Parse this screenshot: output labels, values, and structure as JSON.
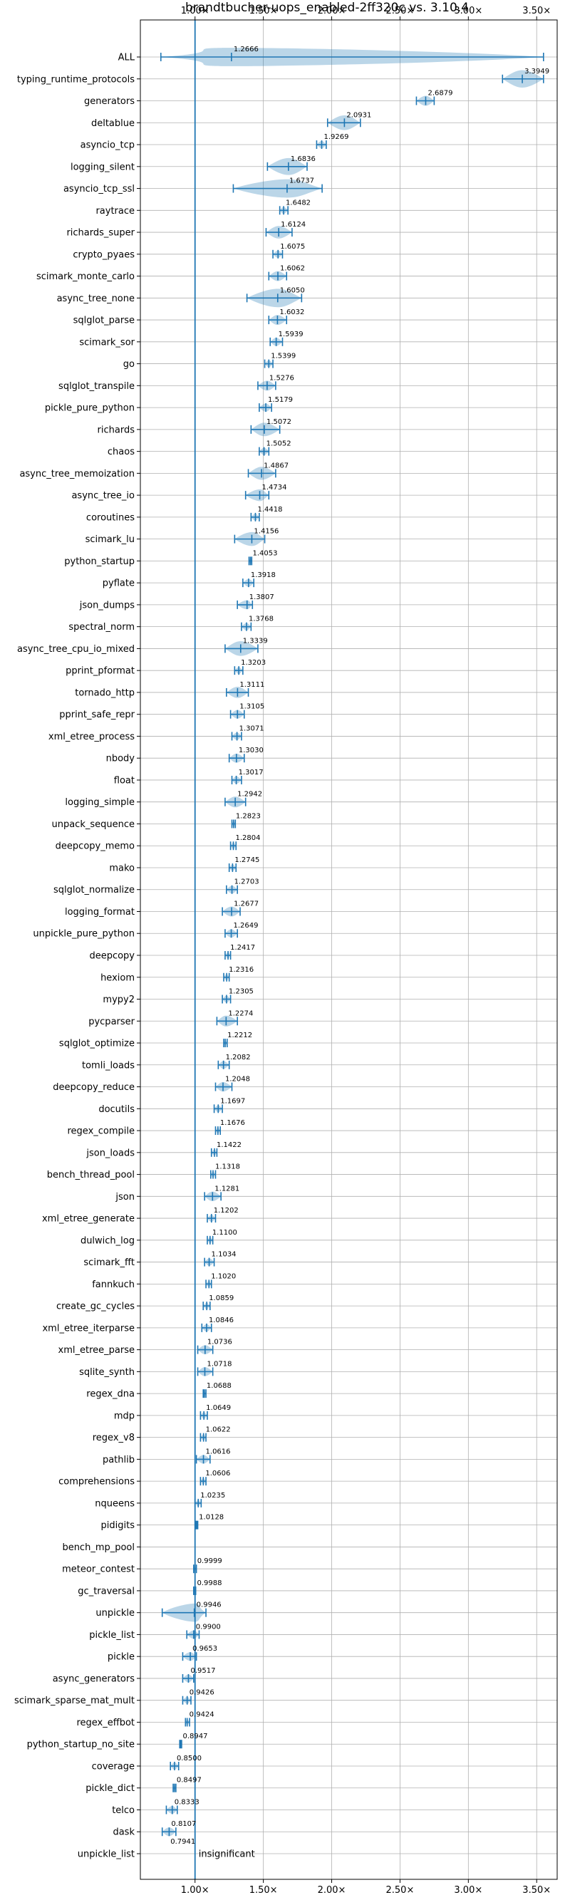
{
  "chart_data": {
    "type": "violin",
    "title": "brandtbucher-uops_enabled-2ff320c vs. 3.10.4",
    "xlabel": "",
    "ylabel": "",
    "xlim": [
      0.6,
      3.65
    ],
    "x_ticks": [
      "1.00×",
      "1.50×",
      "2.00×",
      "2.50×",
      "3.00×",
      "3.50×"
    ],
    "x_tick_values": [
      1.0,
      1.5,
      2.0,
      2.5,
      3.0,
      3.5
    ],
    "reference_line": 1.0,
    "grid": true,
    "insignificant_note": "insignificant",
    "categories": [
      {
        "name": "ALL",
        "label": "1.2666",
        "value": 1.2666,
        "min": 0.75,
        "max": 3.55
      },
      {
        "name": "typing_runtime_protocols",
        "label": "3.3949",
        "value": 3.3949,
        "min": 3.25,
        "max": 3.55
      },
      {
        "name": "generators",
        "label": "2.6879",
        "value": 2.6879,
        "min": 2.62,
        "max": 2.75
      },
      {
        "name": "deltablue",
        "label": "2.0931",
        "value": 2.0931,
        "min": 1.97,
        "max": 2.21
      },
      {
        "name": "asyncio_tcp",
        "label": "1.9269",
        "value": 1.9269,
        "min": 1.89,
        "max": 1.96
      },
      {
        "name": "logging_silent",
        "label": "1.6836",
        "value": 1.6836,
        "min": 1.53,
        "max": 1.82
      },
      {
        "name": "asyncio_tcp_ssl",
        "label": "1.6737",
        "value": 1.6737,
        "min": 1.28,
        "max": 1.93
      },
      {
        "name": "raytrace",
        "label": "1.6482",
        "value": 1.6482,
        "min": 1.62,
        "max": 1.68
      },
      {
        "name": "richards_super",
        "label": "1.6124",
        "value": 1.6124,
        "min": 1.52,
        "max": 1.71
      },
      {
        "name": "crypto_pyaes",
        "label": "1.6075",
        "value": 1.6075,
        "min": 1.57,
        "max": 1.64
      },
      {
        "name": "scimark_monte_carlo",
        "label": "1.6062",
        "value": 1.6062,
        "min": 1.54,
        "max": 1.67
      },
      {
        "name": "async_tree_none",
        "label": "1.6050",
        "value": 1.605,
        "min": 1.38,
        "max": 1.78
      },
      {
        "name": "sqlglot_parse",
        "label": "1.6032",
        "value": 1.6032,
        "min": 1.54,
        "max": 1.67
      },
      {
        "name": "scimark_sor",
        "label": "1.5939",
        "value": 1.5939,
        "min": 1.55,
        "max": 1.64
      },
      {
        "name": "go",
        "label": "1.5399",
        "value": 1.5399,
        "min": 1.51,
        "max": 1.57
      },
      {
        "name": "sqlglot_transpile",
        "label": "1.5276",
        "value": 1.5276,
        "min": 1.46,
        "max": 1.59
      },
      {
        "name": "pickle_pure_python",
        "label": "1.5179",
        "value": 1.5179,
        "min": 1.47,
        "max": 1.56
      },
      {
        "name": "richards",
        "label": "1.5072",
        "value": 1.5072,
        "min": 1.41,
        "max": 1.62
      },
      {
        "name": "chaos",
        "label": "1.5052",
        "value": 1.5052,
        "min": 1.47,
        "max": 1.54
      },
      {
        "name": "async_tree_memoization",
        "label": "1.4867",
        "value": 1.4867,
        "min": 1.39,
        "max": 1.59
      },
      {
        "name": "async_tree_io",
        "label": "1.4734",
        "value": 1.4734,
        "min": 1.37,
        "max": 1.54
      },
      {
        "name": "coroutines",
        "label": "1.4418",
        "value": 1.4418,
        "min": 1.41,
        "max": 1.47
      },
      {
        "name": "scimark_lu",
        "label": "1.4156",
        "value": 1.4156,
        "min": 1.29,
        "max": 1.51
      },
      {
        "name": "python_startup",
        "label": "1.4053",
        "value": 1.4053,
        "min": 1.395,
        "max": 1.415
      },
      {
        "name": "pyflate",
        "label": "1.3918",
        "value": 1.3918,
        "min": 1.35,
        "max": 1.43
      },
      {
        "name": "json_dumps",
        "label": "1.3807",
        "value": 1.3807,
        "min": 1.31,
        "max": 1.42
      },
      {
        "name": "spectral_norm",
        "label": "1.3768",
        "value": 1.3768,
        "min": 1.34,
        "max": 1.41
      },
      {
        "name": "async_tree_cpu_io_mixed",
        "label": "1.3339",
        "value": 1.3339,
        "min": 1.22,
        "max": 1.46
      },
      {
        "name": "pprint_pformat",
        "label": "1.3203",
        "value": 1.3203,
        "min": 1.29,
        "max": 1.35
      },
      {
        "name": "tornado_http",
        "label": "1.3111",
        "value": 1.3111,
        "min": 1.23,
        "max": 1.39
      },
      {
        "name": "pprint_safe_repr",
        "label": "1.3105",
        "value": 1.3105,
        "min": 1.26,
        "max": 1.36
      },
      {
        "name": "xml_etree_process",
        "label": "1.3071",
        "value": 1.3071,
        "min": 1.27,
        "max": 1.34
      },
      {
        "name": "nbody",
        "label": "1.3030",
        "value": 1.303,
        "min": 1.25,
        "max": 1.36
      },
      {
        "name": "float",
        "label": "1.3017",
        "value": 1.3017,
        "min": 1.27,
        "max": 1.34
      },
      {
        "name": "logging_simple",
        "label": "1.2942",
        "value": 1.2942,
        "min": 1.22,
        "max": 1.37
      },
      {
        "name": "unpack_sequence",
        "label": "1.2823",
        "value": 1.2823,
        "min": 1.27,
        "max": 1.295
      },
      {
        "name": "deepcopy_memo",
        "label": "1.2804",
        "value": 1.2804,
        "min": 1.26,
        "max": 1.3
      },
      {
        "name": "mako",
        "label": "1.2745",
        "value": 1.2745,
        "min": 1.25,
        "max": 1.3
      },
      {
        "name": "sqlglot_normalize",
        "label": "1.2703",
        "value": 1.2703,
        "min": 1.23,
        "max": 1.31
      },
      {
        "name": "logging_format",
        "label": "1.2677",
        "value": 1.2677,
        "min": 1.2,
        "max": 1.33
      },
      {
        "name": "unpickle_pure_python",
        "label": "1.2649",
        "value": 1.2649,
        "min": 1.22,
        "max": 1.31
      },
      {
        "name": "deepcopy",
        "label": "1.2417",
        "value": 1.2417,
        "min": 1.22,
        "max": 1.26
      },
      {
        "name": "hexiom",
        "label": "1.2316",
        "value": 1.2316,
        "min": 1.21,
        "max": 1.25
      },
      {
        "name": "mypy2",
        "label": "1.2305",
        "value": 1.2305,
        "min": 1.2,
        "max": 1.26
      },
      {
        "name": "pycparser",
        "label": "1.2274",
        "value": 1.2274,
        "min": 1.16,
        "max": 1.31
      },
      {
        "name": "sqlglot_optimize",
        "label": "1.2212",
        "value": 1.2212,
        "min": 1.21,
        "max": 1.235
      },
      {
        "name": "tomli_loads",
        "label": "1.2082",
        "value": 1.2082,
        "min": 1.17,
        "max": 1.25
      },
      {
        "name": "deepcopy_reduce",
        "label": "1.2048",
        "value": 1.2048,
        "min": 1.15,
        "max": 1.27
      },
      {
        "name": "docutils",
        "label": "1.1697",
        "value": 1.1697,
        "min": 1.14,
        "max": 1.2
      },
      {
        "name": "regex_compile",
        "label": "1.1676",
        "value": 1.1676,
        "min": 1.15,
        "max": 1.185
      },
      {
        "name": "json_loads",
        "label": "1.1422",
        "value": 1.1422,
        "min": 1.12,
        "max": 1.16
      },
      {
        "name": "bench_thread_pool",
        "label": "1.1318",
        "value": 1.1318,
        "min": 1.115,
        "max": 1.15
      },
      {
        "name": "json",
        "label": "1.1281",
        "value": 1.1281,
        "min": 1.07,
        "max": 1.19
      },
      {
        "name": "xml_etree_generate",
        "label": "1.1202",
        "value": 1.1202,
        "min": 1.09,
        "max": 1.15
      },
      {
        "name": "dulwich_log",
        "label": "1.1100",
        "value": 1.11,
        "min": 1.09,
        "max": 1.13
      },
      {
        "name": "scimark_fft",
        "label": "1.1034",
        "value": 1.1034,
        "min": 1.07,
        "max": 1.14
      },
      {
        "name": "fannkuch",
        "label": "1.1020",
        "value": 1.102,
        "min": 1.08,
        "max": 1.12
      },
      {
        "name": "create_gc_cycles",
        "label": "1.0859",
        "value": 1.0859,
        "min": 1.06,
        "max": 1.11
      },
      {
        "name": "xml_etree_iterparse",
        "label": "1.0846",
        "value": 1.0846,
        "min": 1.05,
        "max": 1.12
      },
      {
        "name": "xml_etree_parse",
        "label": "1.0736",
        "value": 1.0736,
        "min": 1.02,
        "max": 1.13
      },
      {
        "name": "sqlite_synth",
        "label": "1.0718",
        "value": 1.0718,
        "min": 1.02,
        "max": 1.13
      },
      {
        "name": "regex_dna",
        "label": "1.0688",
        "value": 1.0688,
        "min": 1.06,
        "max": 1.08
      },
      {
        "name": "mdp",
        "label": "1.0649",
        "value": 1.0649,
        "min": 1.04,
        "max": 1.09
      },
      {
        "name": "regex_v8",
        "label": "1.0622",
        "value": 1.0622,
        "min": 1.04,
        "max": 1.08
      },
      {
        "name": "pathlib",
        "label": "1.0616",
        "value": 1.0616,
        "min": 1.01,
        "max": 1.11
      },
      {
        "name": "comprehensions",
        "label": "1.0606",
        "value": 1.0606,
        "min": 1.04,
        "max": 1.08
      },
      {
        "name": "nqueens",
        "label": "1.0235",
        "value": 1.0235,
        "min": 1.0,
        "max": 1.045
      },
      {
        "name": "pidigits",
        "label": "1.0128",
        "value": 1.0128,
        "min": 1.005,
        "max": 1.02
      },
      {
        "name": "bench_mp_pool",
        "label": "",
        "value": 1.0,
        "min": 1.0,
        "max": 1.0
      },
      {
        "name": "meteor_contest",
        "label": "0.9999",
        "value": 0.9999,
        "min": 0.99,
        "max": 1.01
      },
      {
        "name": "gc_traversal",
        "label": "0.9988",
        "value": 0.9988,
        "min": 0.99,
        "max": 1.005
      },
      {
        "name": "unpickle",
        "label": "0.9946",
        "value": 0.9946,
        "min": 0.76,
        "max": 1.08
      },
      {
        "name": "pickle_list",
        "label": "0.9900",
        "value": 0.99,
        "min": 0.94,
        "max": 1.03
      },
      {
        "name": "pickle",
        "label": "0.9653",
        "value": 0.9653,
        "min": 0.91,
        "max": 1.01
      },
      {
        "name": "async_generators",
        "label": "0.9517",
        "value": 0.9517,
        "min": 0.91,
        "max": 0.99
      },
      {
        "name": "scimark_sparse_mat_mult",
        "label": "0.9426",
        "value": 0.9426,
        "min": 0.91,
        "max": 0.97
      },
      {
        "name": "regex_effbot",
        "label": "0.9424",
        "value": 0.9424,
        "min": 0.93,
        "max": 0.96
      },
      {
        "name": "python_startup_no_site",
        "label": "0.8947",
        "value": 0.8947,
        "min": 0.888,
        "max": 0.902
      },
      {
        "name": "coverage",
        "label": "0.8500",
        "value": 0.85,
        "min": 0.82,
        "max": 0.88
      },
      {
        "name": "pickle_dict",
        "label": "0.8497",
        "value": 0.8497,
        "min": 0.84,
        "max": 0.86
      },
      {
        "name": "telco",
        "label": "0.8333",
        "value": 0.8333,
        "min": 0.79,
        "max": 0.87
      },
      {
        "name": "dask",
        "label": "0.8107",
        "value": 0.8107,
        "min": 0.76,
        "max": 0.86
      },
      {
        "name": "unpickle_list",
        "label": "0.7941",
        "value": 0.7941,
        "min": 0.0,
        "max": 0.0,
        "insignificant": true
      }
    ]
  }
}
